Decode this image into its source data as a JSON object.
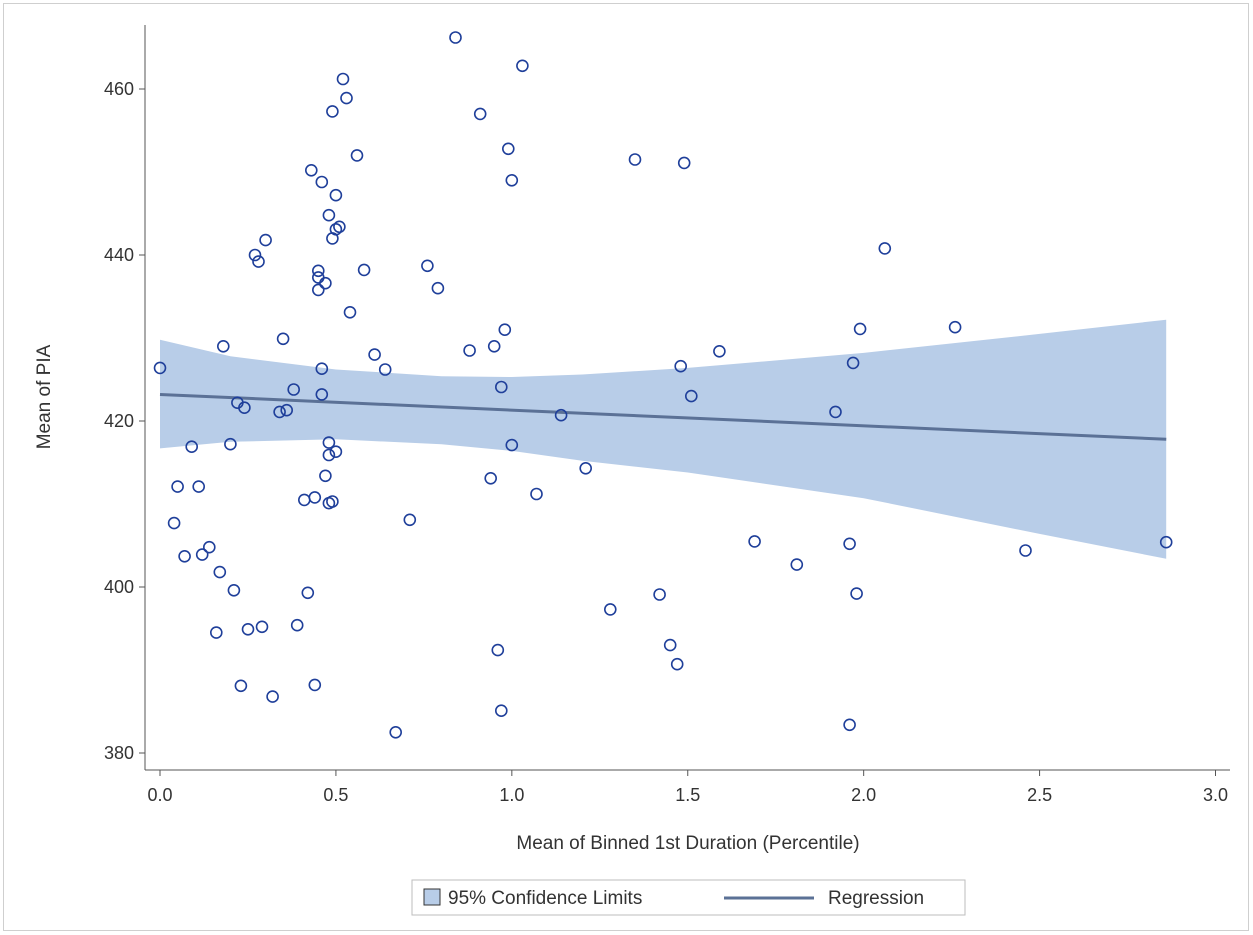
{
  "chart_data": {
    "type": "scatter",
    "xlabel": "Mean of Binned 1st Duration (Percentile)",
    "ylabel": "Mean of PIA",
    "xlim": [
      0,
      3.0
    ],
    "ylim": [
      380,
      465
    ],
    "xticks": [
      "0.0",
      "0.5",
      "1.0",
      "1.5",
      "2.0",
      "2.5",
      "3.0"
    ],
    "yticks": [
      "380",
      "400",
      "420",
      "440",
      "460"
    ],
    "legend": {
      "placement": "bottom",
      "items": [
        {
          "label": "95% Confidence Limits",
          "type": "band"
        },
        {
          "label": "Regression",
          "type": "line"
        }
      ]
    },
    "colors": {
      "points": "#1f3f9a",
      "band": "#b8cde8",
      "regression": "#5b7196",
      "axis": "#555555"
    },
    "regression": {
      "x": [
        0.0,
        2.86
      ],
      "y": [
        423.2,
        417.8
      ]
    },
    "confidence_band": {
      "x": [
        0.0,
        0.2,
        0.5,
        0.8,
        1.0,
        1.2,
        1.5,
        2.0,
        2.5,
        2.86
      ],
      "upper": [
        429.8,
        427.8,
        426.2,
        425.4,
        425.3,
        425.6,
        426.4,
        428.2,
        430.5,
        432.2
      ],
      "lower": [
        416.7,
        417.5,
        417.8,
        417.2,
        416.4,
        415.2,
        413.8,
        410.7,
        406.4,
        403.4
      ]
    },
    "points": [
      [
        0.84,
        466.2
      ],
      [
        1.03,
        462.8
      ],
      [
        0.52,
        461.2
      ],
      [
        0.53,
        458.9
      ],
      [
        0.49,
        457.3
      ],
      [
        0.91,
        457.0
      ],
      [
        0.99,
        452.8
      ],
      [
        0.56,
        452.0
      ],
      [
        1.35,
        451.5
      ],
      [
        1.49,
        451.1
      ],
      [
        0.43,
        450.2
      ],
      [
        0.46,
        448.8
      ],
      [
        1.0,
        449.0
      ],
      [
        0.5,
        447.2
      ],
      [
        0.48,
        444.8
      ],
      [
        0.51,
        443.4
      ],
      [
        0.5,
        443.1
      ],
      [
        0.49,
        442.0
      ],
      [
        0.3,
        441.8
      ],
      [
        2.06,
        440.8
      ],
      [
        0.27,
        440.0
      ],
      [
        0.28,
        439.2
      ],
      [
        0.76,
        438.7
      ],
      [
        0.58,
        438.2
      ],
      [
        0.45,
        438.1
      ],
      [
        0.45,
        437.3
      ],
      [
        0.47,
        436.6
      ],
      [
        0.45,
        435.8
      ],
      [
        0.79,
        436.0
      ],
      [
        0.54,
        433.1
      ],
      [
        0.98,
        431.0
      ],
      [
        1.99,
        431.1
      ],
      [
        2.26,
        431.3
      ],
      [
        0.35,
        429.9
      ],
      [
        0.18,
        429.0
      ],
      [
        0.95,
        429.0
      ],
      [
        0.88,
        428.5
      ],
      [
        1.59,
        428.4
      ],
      [
        0.61,
        428.0
      ],
      [
        1.97,
        427.0
      ],
      [
        0.0,
        426.4
      ],
      [
        0.46,
        426.3
      ],
      [
        1.48,
        426.6
      ],
      [
        0.64,
        426.2
      ],
      [
        0.97,
        424.1
      ],
      [
        0.38,
        423.8
      ],
      [
        0.46,
        423.2
      ],
      [
        1.51,
        423.0
      ],
      [
        0.22,
        422.2
      ],
      [
        0.24,
        421.6
      ],
      [
        0.36,
        421.3
      ],
      [
        0.34,
        421.1
      ],
      [
        1.92,
        421.1
      ],
      [
        1.14,
        420.7
      ],
      [
        0.48,
        417.4
      ],
      [
        0.2,
        417.2
      ],
      [
        0.09,
        416.9
      ],
      [
        1.0,
        417.1
      ],
      [
        0.5,
        416.3
      ],
      [
        0.48,
        415.9
      ],
      [
        1.21,
        414.3
      ],
      [
        0.47,
        413.4
      ],
      [
        0.94,
        413.1
      ],
      [
        0.05,
        412.1
      ],
      [
        0.11,
        412.1
      ],
      [
        1.07,
        411.2
      ],
      [
        0.44,
        410.8
      ],
      [
        0.41,
        410.5
      ],
      [
        0.49,
        410.3
      ],
      [
        0.48,
        410.1
      ],
      [
        0.71,
        408.1
      ],
      [
        0.04,
        407.7
      ],
      [
        0.14,
        404.8
      ],
      [
        0.12,
        403.9
      ],
      [
        0.07,
        403.7
      ],
      [
        1.69,
        405.5
      ],
      [
        1.96,
        405.2
      ],
      [
        2.86,
        405.4
      ],
      [
        2.46,
        404.4
      ],
      [
        0.17,
        401.8
      ],
      [
        1.81,
        402.7
      ],
      [
        0.21,
        399.6
      ],
      [
        0.42,
        399.3
      ],
      [
        1.42,
        399.1
      ],
      [
        1.98,
        399.2
      ],
      [
        1.28,
        397.3
      ],
      [
        0.39,
        395.4
      ],
      [
        0.29,
        395.2
      ],
      [
        0.25,
        394.9
      ],
      [
        0.16,
        394.5
      ],
      [
        1.45,
        393.0
      ],
      [
        0.96,
        392.4
      ],
      [
        1.47,
        390.7
      ],
      [
        0.23,
        388.1
      ],
      [
        0.44,
        388.2
      ],
      [
        0.32,
        386.8
      ],
      [
        0.97,
        385.1
      ],
      [
        1.96,
        383.4
      ],
      [
        0.67,
        382.5
      ]
    ]
  }
}
